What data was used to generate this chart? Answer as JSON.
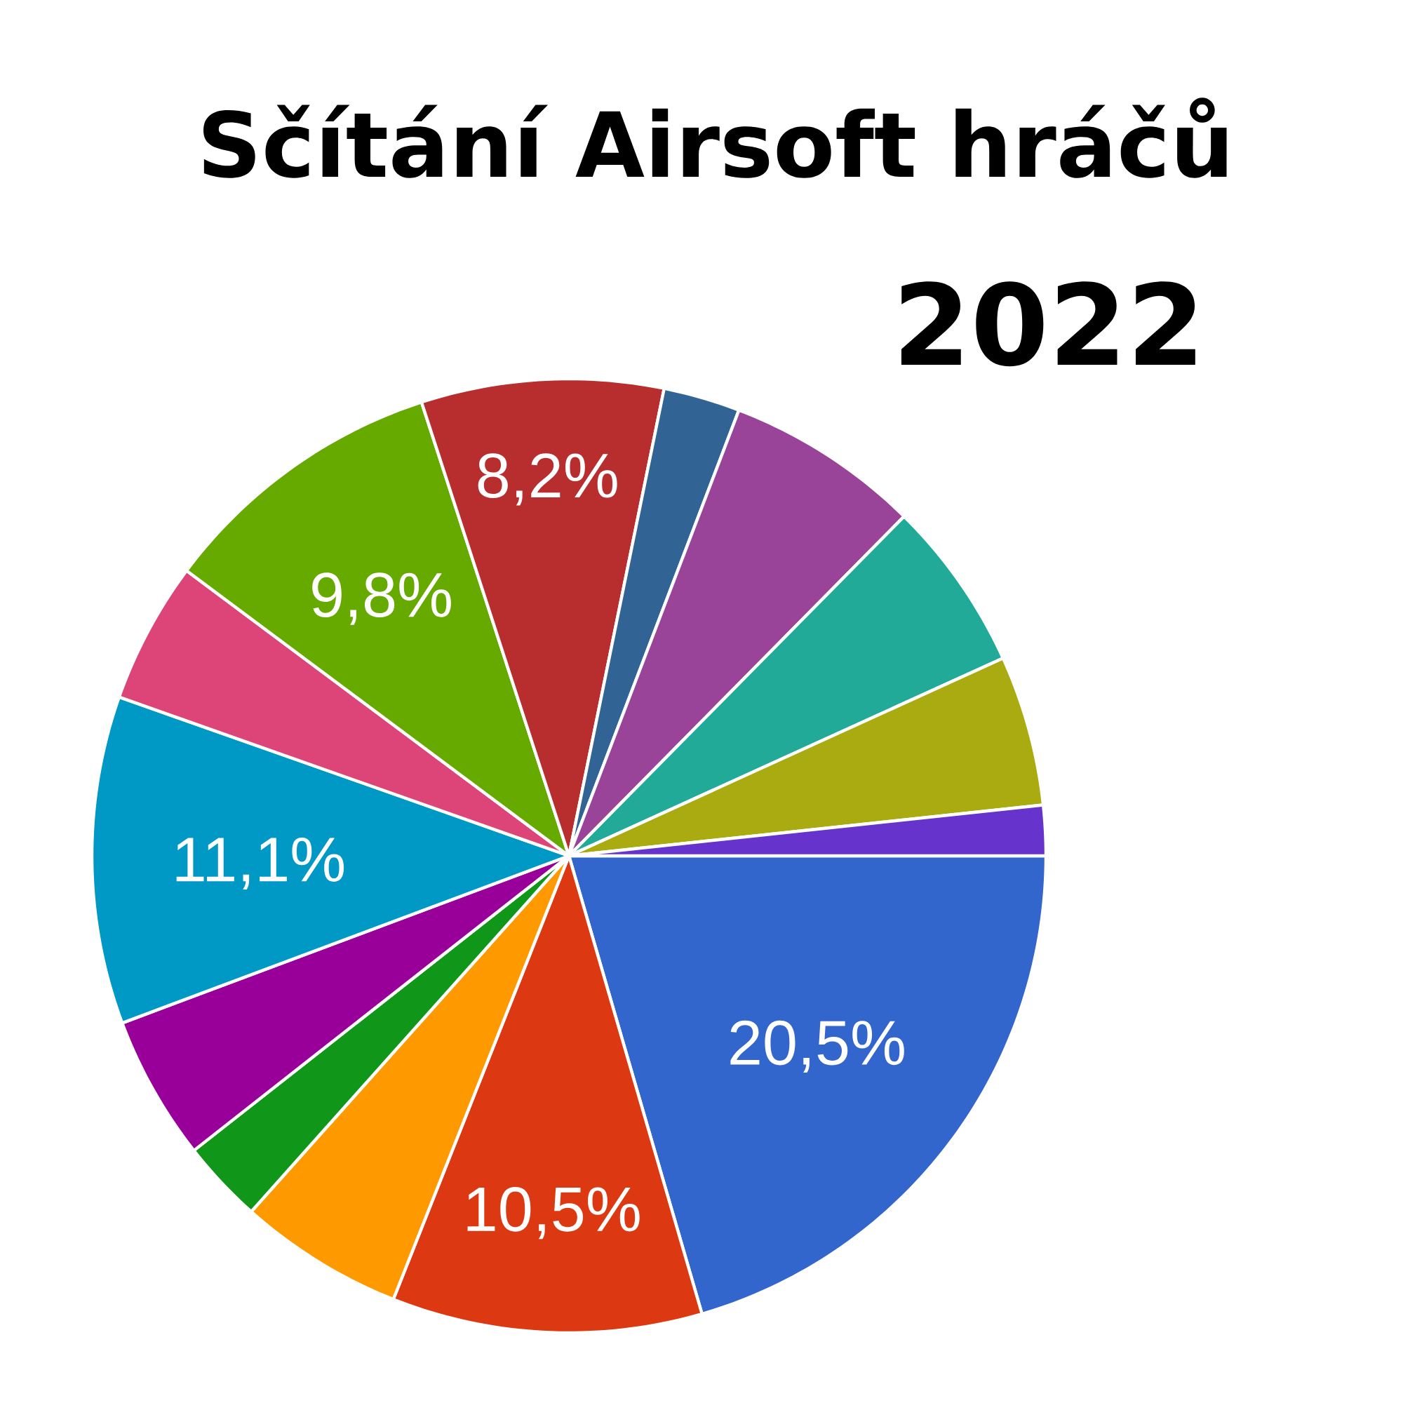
{
  "chart_data": {
    "type": "pie",
    "title": "Sčítání Airsoft hráčů",
    "subtitle": "2022",
    "categories": [
      null,
      null,
      null,
      null,
      null,
      null,
      null,
      null,
      null,
      null,
      null,
      null,
      null,
      null
    ],
    "values": [
      20.5,
      10.5,
      5.6,
      2.8,
      4.9,
      11.1,
      4.8,
      9.8,
      8.2,
      2.6,
      6.6,
      5.8,
      5.1,
      1.7
    ],
    "colors": [
      "#3366cc",
      "#dc3912",
      "#ff9900",
      "#109618",
      "#990099",
      "#0099c6",
      "#dd4477",
      "#66aa00",
      "#b82e2e",
      "#316395",
      "#994499",
      "#22aa99",
      "#aaaa11",
      "#6633cc"
    ],
    "value_labels": [
      "20,5%",
      "10,5%",
      null,
      null,
      null,
      "11,1%",
      null,
      "9,8%",
      "8,2%",
      null,
      null,
      null,
      null,
      null
    ]
  }
}
